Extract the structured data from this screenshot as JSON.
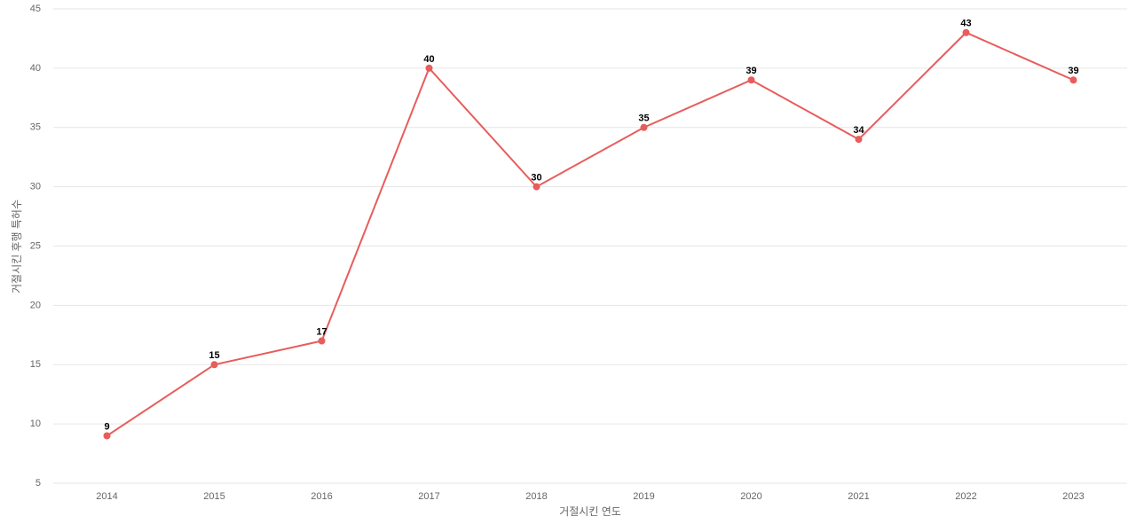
{
  "chart_data": {
    "type": "line",
    "x_label": "거절시킨 연도",
    "y_label": "거절시킨 후행 특허수",
    "categories": [
      "2014",
      "2015",
      "2016",
      "2017",
      "2018",
      "2019",
      "2020",
      "2021",
      "2022",
      "2023"
    ],
    "series": [
      {
        "color": "#e85c5c",
        "values": [
          9,
          15,
          17,
          40,
          30,
          35,
          39,
          34,
          43,
          39
        ]
      }
    ],
    "ylim": [
      5,
      45
    ],
    "yticks": [
      5,
      10,
      15,
      20,
      25,
      30,
      35,
      40,
      45
    ],
    "grid": true
  }
}
